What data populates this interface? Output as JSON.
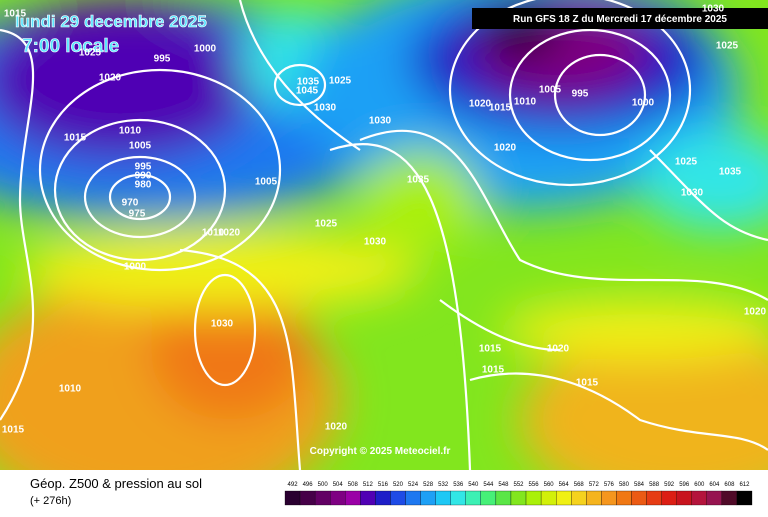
{
  "header": {
    "date": "lundi 29 decembre 2025",
    "time": "7:00 locale",
    "run": "Run GFS 18 Z du Mercredi 17 décembre 2025"
  },
  "copyright": "Copyright © 2025 Meteociel.fr",
  "footer": {
    "title": "Géop. Z500 & pression au sol",
    "lead": "(+ 276h)"
  },
  "legend": {
    "labels": [
      492,
      496,
      500,
      504,
      508,
      512,
      516,
      520,
      524,
      528,
      532,
      536,
      540,
      544,
      548,
      552,
      556,
      560,
      564,
      568,
      572,
      576,
      580,
      584,
      588,
      592,
      596,
      600,
      604,
      608,
      612
    ],
    "colors": [
      "#2a0030",
      "#460048",
      "#620064",
      "#7e0082",
      "#9a00a6",
      "#5000b4",
      "#1e1ec8",
      "#1e4be6",
      "#1e78f0",
      "#1ea0f5",
      "#1ec8f5",
      "#32e6e6",
      "#3cf0b4",
      "#46f078",
      "#5ae646",
      "#82e61e",
      "#aaf00a",
      "#d2f00a",
      "#f0f014",
      "#f5d21e",
      "#f5b41e",
      "#f5961e",
      "#f07814",
      "#eb5a14",
      "#e63c14",
      "#dc1e14",
      "#c8141e",
      "#b4143c",
      "#961450",
      "#500a28",
      "#000000"
    ]
  },
  "isobars": [
    "995",
    "1000",
    "1020",
    "1025",
    "1015",
    "1010",
    "1005",
    "995",
    "990",
    "980",
    "970",
    "975",
    "1005",
    "1010",
    "1020",
    "1000",
    "1030",
    "1010",
    "1015",
    "1015",
    "1035",
    "1045",
    "1025",
    "1030",
    "1030",
    "1035",
    "1025",
    "1030",
    "1020",
    "1015",
    "1010",
    "1005",
    "995",
    "1000",
    "1020",
    "1025",
    "1030",
    "1035",
    "1030",
    "1025",
    "1020",
    "1015",
    "1015",
    "1020",
    "1015",
    "1020"
  ]
}
